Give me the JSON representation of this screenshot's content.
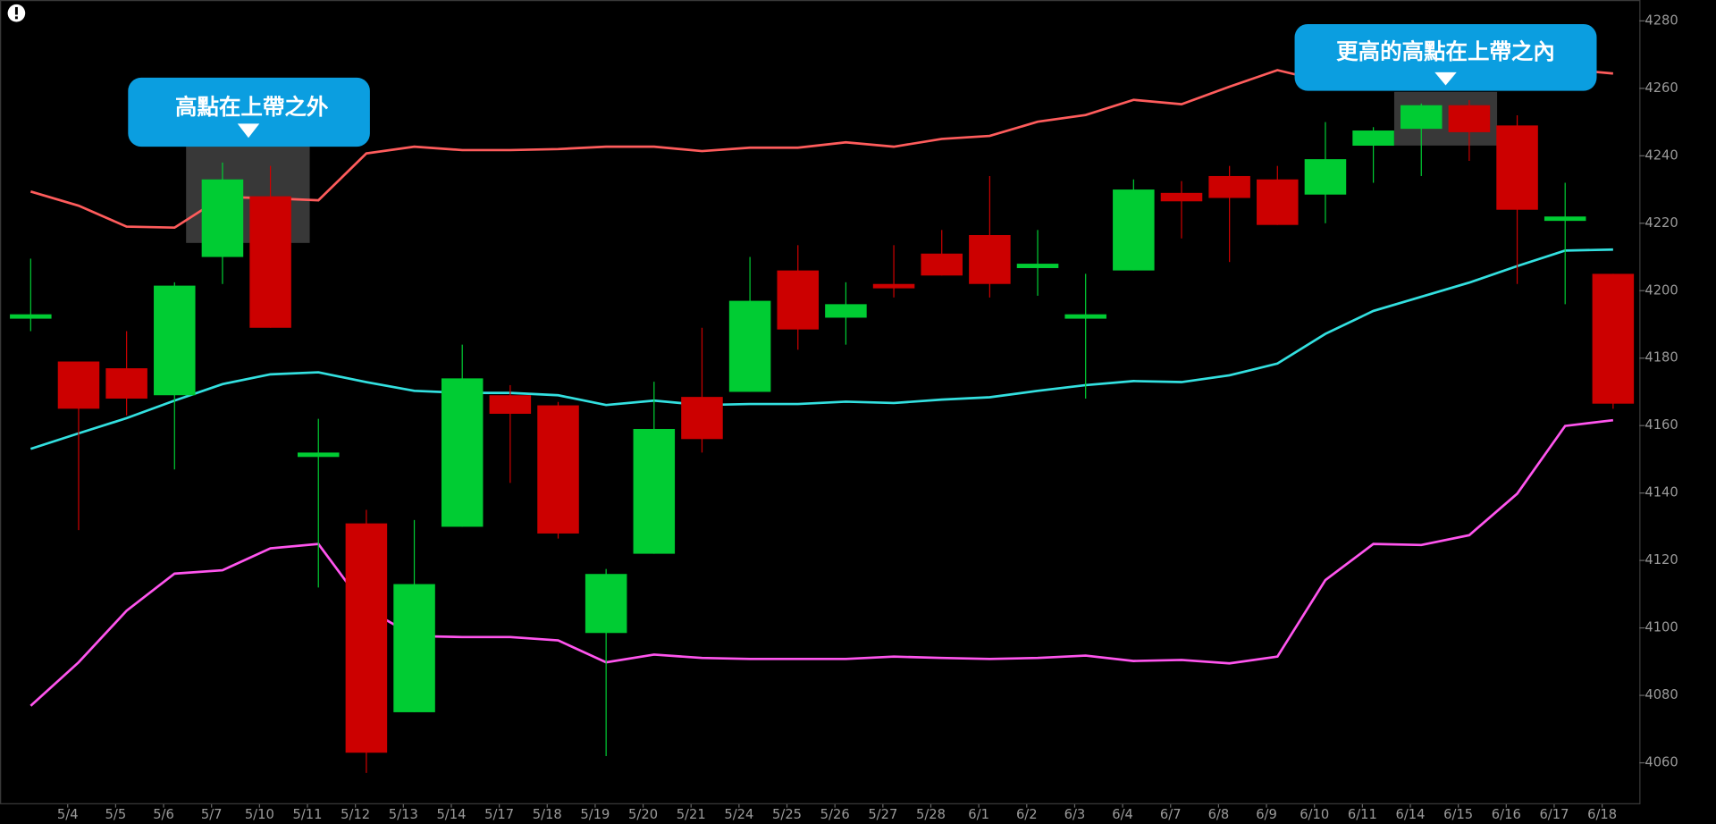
{
  "chart_data": {
    "type": "candlestick",
    "categories": [
      null,
      "5/4",
      "5/5",
      "5/6",
      "5/7",
      "5/10",
      "5/11",
      "5/12",
      "5/13",
      "5/14",
      "5/17",
      "5/18",
      "5/19",
      "5/20",
      "5/21",
      "5/24",
      "5/25",
      "5/26",
      "5/27",
      "5/28",
      "6/1",
      "6/2",
      "6/3",
      "6/4",
      "6/7",
      "6/8",
      "6/9",
      "6/10",
      "6/11",
      "6/14",
      "6/15",
      "6/16",
      "6/17",
      "6/18"
    ],
    "open": [
      4192,
      4179,
      4177,
      4169,
      4210,
      4228,
      4151,
      4131,
      4075,
      4130,
      4169,
      4166,
      4098.5,
      4122,
      4168.5,
      4170,
      4206,
      4192,
      4202,
      4211,
      4216.5,
      4207,
      4192,
      4206,
      4229,
      4234,
      4233,
      4228.5,
      4243,
      4248,
      4255,
      4249,
      4221,
      4205
    ],
    "high": [
      4209.5,
      4179,
      4188,
      4202.5,
      4238,
      4237,
      4162,
      4135,
      4132,
      4184,
      4172,
      4167,
      4117.5,
      4173,
      4189,
      4210,
      4213.5,
      4202.5,
      4213.5,
      4218,
      4234,
      4218,
      4205,
      4233,
      4232.5,
      4237,
      4237,
      4250,
      4248.5,
      4255.5,
      4256.5,
      4252,
      4232,
      4205
    ],
    "low": [
      4188,
      4129,
      4163,
      4147,
      4202,
      4189,
      4112,
      4057,
      4075,
      4130,
      4143,
      4126.5,
      4062,
      4122,
      4152,
      4170,
      4182.5,
      4184,
      4198,
      4204.5,
      4198,
      4198.5,
      4168,
      4206,
      4215.5,
      4208.5,
      4219.5,
      4220,
      4232,
      4234,
      4238.5,
      4202,
      4196,
      4165
    ],
    "close": [
      4193,
      4165,
      4168,
      4201.5,
      4233,
      4189,
      4152,
      4063,
      4113,
      4174,
      4163.5,
      4128,
      4116,
      4159,
      4156,
      4197,
      4188.5,
      4196,
      4201,
      4204.5,
      4202,
      4208,
      4193,
      4230,
      4226.5,
      4227.5,
      4219.5,
      4239,
      4247.5,
      4255,
      4247,
      4224,
      4222,
      4166.5
    ],
    "up_color": "#00cc33",
    "down_color": "#cc0000",
    "bands": [
      {
        "color": "#ff5c5c",
        "values": [
          4229.4,
          4225.2,
          4219,
          4218.7,
          4227.8,
          4227.4,
          4226.8,
          4240.7,
          4242.7,
          4241.7,
          4241.7,
          4242,
          4242.7,
          4242.7,
          4241.4,
          4242.4,
          4242.4,
          4244,
          4242.7,
          4245,
          4245.9,
          4250.1,
          4252.1,
          4256.6,
          4255.3,
          4260.5,
          4265.4,
          4262,
          4263,
          4264,
          4264.5,
          4265,
          4265.7,
          4264.4
        ]
      },
      {
        "color": "#33e0e0",
        "values": [
          4153.1,
          4157.7,
          4162.2,
          4167.4,
          4172.3,
          4175.2,
          4175.8,
          4172.9,
          4170.3,
          4169.7,
          4169.7,
          4169,
          4166.1,
          4167.4,
          4166.1,
          4166.4,
          4166.4,
          4167.1,
          4166.7,
          4167.7,
          4168.4,
          4170.3,
          4172,
          4173.2,
          4172.9,
          4174.9,
          4178.4,
          4187.2,
          4194,
          4198.2,
          4202.4,
          4207.3,
          4211.9,
          4212.2
        ]
      },
      {
        "color": "#ff55ee",
        "values": [
          4076.9,
          4089.8,
          4105.1,
          4116.1,
          4117.1,
          4123.6,
          4124.9,
          4105.7,
          4097.6,
          4097.3,
          4097.3,
          4096.3,
          4089.8,
          4092.1,
          4091.1,
          4090.8,
          4090.8,
          4090.8,
          4091.5,
          4091.1,
          4090.8,
          4091.1,
          4091.8,
          4090.2,
          4090.5,
          4089.5,
          4091.5,
          4114.2,
          4124.9,
          4124.6,
          4127.5,
          4139.8,
          4159.9,
          4161.6
        ]
      }
    ],
    "ylim": [
      4047.7,
      4286.2
    ],
    "yticks": [
      4060,
      4080,
      4100,
      4120,
      4140,
      4160,
      4180,
      4200,
      4220,
      4240,
      4260,
      4280
    ],
    "annotations": [
      {
        "text": "高點在上帶之外"
      },
      {
        "text": "更高的高點在上帶之內"
      }
    ]
  }
}
